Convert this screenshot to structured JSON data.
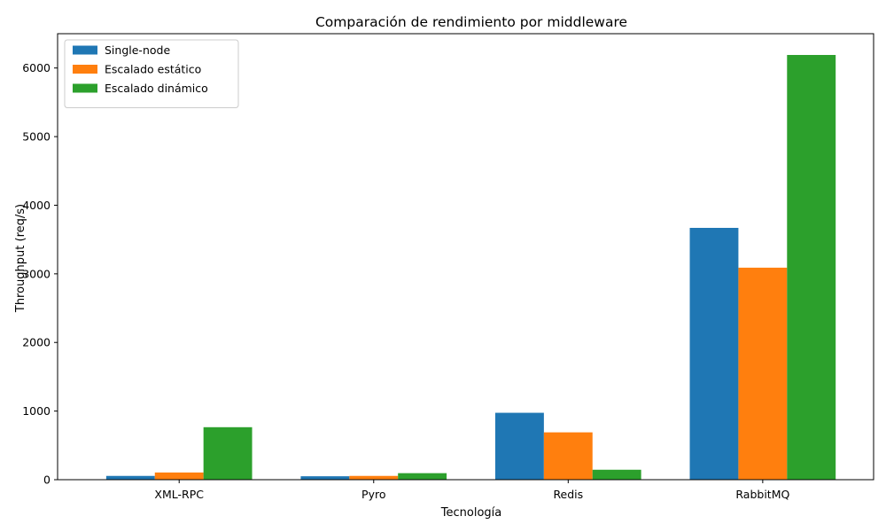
{
  "chart_data": {
    "type": "bar",
    "title": "Comparación de rendimiento por middleware",
    "xlabel": "Tecnología",
    "ylabel": "Throughput (req/s)",
    "categories": [
      "XML-RPC",
      "Pyro",
      "Redis",
      "RabbitMQ"
    ],
    "ylim": [
      0,
      6500
    ],
    "yticks": [
      0,
      1000,
      2000,
      3000,
      4000,
      5000,
      6000
    ],
    "legend_position": "top-left",
    "grid": false,
    "series": [
      {
        "name": "Single-node",
        "color": "#1f77b4",
        "values": [
          55,
          50,
          975,
          3670
        ]
      },
      {
        "name": "Escalado estático",
        "color": "#ff7f0e",
        "values": [
          105,
          55,
          690,
          3090
        ]
      },
      {
        "name": "Escalado dinámico",
        "color": "#2ca02c",
        "values": [
          765,
          95,
          145,
          6190
        ]
      }
    ]
  }
}
